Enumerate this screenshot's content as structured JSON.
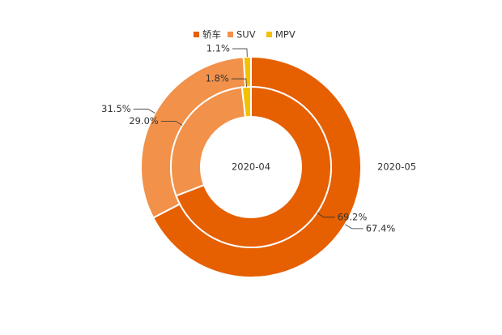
{
  "chart_data": {
    "type": "doughnut",
    "categories": [
      "轿车",
      "SUV",
      "MPV"
    ],
    "colors": [
      "#e65f00",
      "#f2914a",
      "#f5c000"
    ],
    "series": [
      {
        "name": "2020-05",
        "values": [
          67.4,
          31.5,
          1.1
        ],
        "value_labels": [
          "67.4%",
          "31.5%",
          "1.1%"
        ]
      },
      {
        "name": "2020-04",
        "values": [
          69.2,
          29.0,
          1.8
        ],
        "value_labels": [
          "69.2%",
          "29.0%",
          "1.8%"
        ]
      }
    ],
    "legend": "top"
  }
}
